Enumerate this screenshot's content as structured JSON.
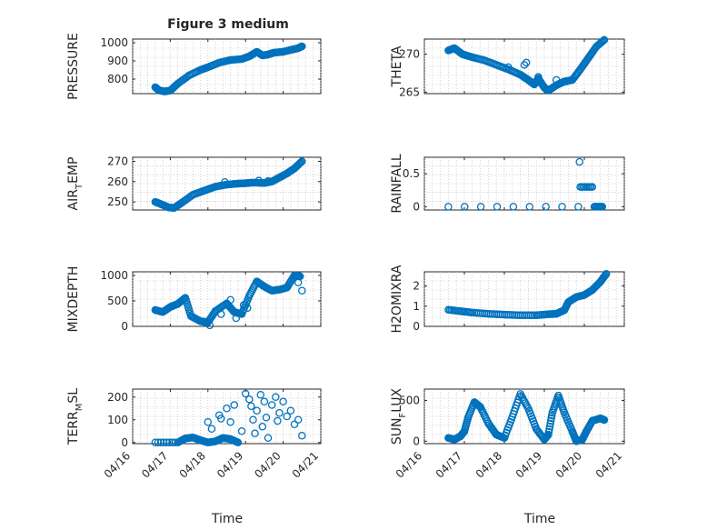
{
  "figure": {
    "title": "Figure 3 medium",
    "xlabel": "Time",
    "marker_color": "#0072bd",
    "axis_color": "#262626"
  },
  "chart_data": [
    {
      "type": "scatter",
      "title": "Figure 3 medium",
      "ylabel": "PRESSURE",
      "xlim": [
        0,
        5
      ],
      "ylim": [
        720,
        1020
      ],
      "yticks": [
        800,
        900,
        1000
      ],
      "xticks": [
        "04/16",
        "04/17",
        "04/18",
        "04/19",
        "04/20",
        "04/21"
      ],
      "show_xticks": false,
      "curve": [
        [
          0.6,
          755
        ],
        [
          0.7,
          738
        ],
        [
          0.85,
          732
        ],
        [
          1.0,
          737
        ],
        [
          1.2,
          775
        ],
        [
          1.5,
          820
        ],
        [
          1.8,
          850
        ],
        [
          2.0,
          865
        ],
        [
          2.3,
          890
        ],
        [
          2.6,
          905
        ],
        [
          2.9,
          910
        ],
        [
          3.1,
          925
        ],
        [
          3.3,
          950
        ],
        [
          3.45,
          930
        ],
        [
          3.6,
          935
        ],
        [
          3.75,
          945
        ],
        [
          4.0,
          950
        ],
        [
          4.2,
          960
        ],
        [
          4.4,
          970
        ],
        [
          4.5,
          980
        ]
      ]
    },
    {
      "type": "scatter",
      "ylabel": "THETA",
      "xlim": [
        0,
        5
      ],
      "ylim": [
        264.8,
        272
      ],
      "yticks": [
        265,
        270
      ],
      "xticks": [
        "04/16",
        "04/17",
        "04/18",
        "04/19",
        "04/20",
        "04/21"
      ],
      "show_xticks": false,
      "curve": [
        [
          0.6,
          270.5
        ],
        [
          0.75,
          270.8
        ],
        [
          0.95,
          270.0
        ],
        [
          1.2,
          269.6
        ],
        [
          1.5,
          269.2
        ],
        [
          1.8,
          268.6
        ],
        [
          2.1,
          268.0
        ],
        [
          2.4,
          267.3
        ],
        [
          2.6,
          266.6
        ],
        [
          2.75,
          266.0
        ],
        [
          2.85,
          266.8
        ],
        [
          3.0,
          265.6
        ],
        [
          3.1,
          265.2
        ],
        [
          3.3,
          265.9
        ],
        [
          3.5,
          266.4
        ],
        [
          3.7,
          266.6
        ],
        [
          3.9,
          268.0
        ],
        [
          4.1,
          269.5
        ],
        [
          4.3,
          271.0
        ],
        [
          4.5,
          271.9
        ]
      ],
      "extra": [
        [
          2.1,
          268.3
        ],
        [
          2.5,
          268.6
        ],
        [
          2.55,
          268.9
        ],
        [
          2.85,
          267.0
        ],
        [
          3.3,
          266.6
        ],
        [
          3.55,
          266.4
        ]
      ]
    },
    {
      "type": "scatter",
      "ylabel": "AIR_TEMP",
      "xlim": [
        0,
        5
      ],
      "ylim": [
        246,
        272
      ],
      "yticks": [
        250,
        260,
        270
      ],
      "xticks": [
        "04/16",
        "04/17",
        "04/18",
        "04/19",
        "04/20",
        "04/21"
      ],
      "show_xticks": false,
      "curve": [
        [
          0.6,
          250.0
        ],
        [
          0.8,
          248.5
        ],
        [
          0.95,
          247.3
        ],
        [
          1.1,
          247.0
        ],
        [
          1.3,
          249.5
        ],
        [
          1.6,
          253.5
        ],
        [
          1.9,
          255.5
        ],
        [
          2.2,
          257.5
        ],
        [
          2.5,
          258.5
        ],
        [
          2.8,
          259.0
        ],
        [
          3.0,
          259.2
        ],
        [
          3.2,
          259.5
        ],
        [
          3.5,
          259.3
        ],
        [
          3.7,
          260.0
        ],
        [
          3.9,
          262.0
        ],
        [
          4.1,
          264.0
        ],
        [
          4.3,
          266.5
        ],
        [
          4.5,
          270.0
        ]
      ],
      "extra": [
        [
          3.35,
          260.5
        ],
        [
          3.6,
          260.3
        ],
        [
          2.45,
          259.8
        ]
      ]
    },
    {
      "type": "scatter",
      "ylabel": "RAINFALL",
      "xlim": [
        0,
        5
      ],
      "ylim": [
        -0.05,
        0.75
      ],
      "yticks": [
        0,
        0.5
      ],
      "xticks": [
        "04/16",
        "04/17",
        "04/18",
        "04/19",
        "04/20",
        "04/21"
      ],
      "show_xticks": false,
      "curve": [
        [
          0.6,
          0
        ],
        [
          3.85,
          0
        ]
      ],
      "curve2": [
        [
          3.9,
          0.3
        ],
        [
          4.2,
          0.3
        ]
      ],
      "curve3": [
        [
          4.25,
          0
        ],
        [
          4.45,
          0
        ]
      ],
      "extra": [
        [
          3.88,
          0.68
        ]
      ]
    },
    {
      "type": "scatter",
      "ylabel": "MIXDEPTH",
      "xlim": [
        0,
        5
      ],
      "ylim": [
        0,
        1070
      ],
      "yticks": [
        0,
        500,
        1000
      ],
      "xticks": [
        "04/16",
        "04/17",
        "04/18",
        "04/19",
        "04/20",
        "04/21"
      ],
      "show_xticks": false,
      "curve": [
        [
          0.6,
          320
        ],
        [
          0.8,
          280
        ],
        [
          1.0,
          380
        ],
        [
          1.2,
          440
        ],
        [
          1.4,
          560
        ],
        [
          1.55,
          200
        ],
        [
          1.8,
          100
        ],
        [
          2.0,
          80
        ],
        [
          2.2,
          300
        ],
        [
          2.5,
          450
        ],
        [
          2.7,
          280
        ],
        [
          2.9,
          240
        ],
        [
          3.1,
          600
        ],
        [
          3.3,
          880
        ],
        [
          3.5,
          780
        ],
        [
          3.7,
          700
        ],
        [
          3.9,
          720
        ],
        [
          4.1,
          760
        ],
        [
          4.3,
          1000
        ],
        [
          4.45,
          980
        ]
      ],
      "extra": [
        [
          2.05,
          20
        ],
        [
          2.35,
          240
        ],
        [
          2.6,
          520
        ],
        [
          2.75,
          160
        ],
        [
          2.95,
          420
        ],
        [
          3.05,
          360
        ],
        [
          4.5,
          700
        ],
        [
          4.4,
          860
        ]
      ]
    },
    {
      "type": "scatter",
      "ylabel": "H2OMIXRA",
      "xlim": [
        0,
        5
      ],
      "ylim": [
        0,
        2.7
      ],
      "yticks": [
        0,
        1,
        2
      ],
      "xticks": [
        "04/16",
        "04/17",
        "04/18",
        "04/19",
        "04/20",
        "04/21"
      ],
      "show_xticks": false,
      "curve": [
        [
          0.6,
          0.82
        ],
        [
          0.9,
          0.75
        ],
        [
          1.2,
          0.68
        ],
        [
          1.6,
          0.62
        ],
        [
          2.0,
          0.58
        ],
        [
          2.4,
          0.55
        ],
        [
          2.8,
          0.55
        ],
        [
          3.1,
          0.6
        ],
        [
          3.3,
          0.62
        ],
        [
          3.5,
          0.8
        ],
        [
          3.6,
          1.2
        ],
        [
          3.8,
          1.45
        ],
        [
          4.0,
          1.55
        ],
        [
          4.2,
          1.8
        ],
        [
          4.4,
          2.2
        ],
        [
          4.55,
          2.6
        ]
      ]
    },
    {
      "type": "scatter",
      "ylabel": "TERR_MSL",
      "xlim": [
        0,
        5
      ],
      "ylim": [
        -5,
        235
      ],
      "yticks": [
        0,
        100,
        200
      ],
      "xticks": [
        "04/16",
        "04/17",
        "04/18",
        "04/19",
        "04/20",
        "04/21"
      ],
      "show_xticks": true,
      "curve": [
        [
          0.6,
          0
        ],
        [
          1.2,
          0
        ],
        [
          1.4,
          18
        ],
        [
          1.6,
          22
        ],
        [
          1.8,
          10
        ],
        [
          2.0,
          0
        ],
        [
          2.2,
          5
        ],
        [
          2.4,
          20
        ],
        [
          2.6,
          15
        ],
        [
          2.8,
          0
        ]
      ],
      "extra": [
        [
          2.0,
          90
        ],
        [
          2.1,
          60
        ],
        [
          2.3,
          120
        ],
        [
          2.5,
          150
        ],
        [
          2.6,
          90
        ],
        [
          2.7,
          165
        ],
        [
          2.9,
          50
        ],
        [
          3.0,
          215
        ],
        [
          3.1,
          190
        ],
        [
          3.15,
          160
        ],
        [
          3.2,
          100
        ],
        [
          3.25,
          40
        ],
        [
          3.3,
          140
        ],
        [
          3.4,
          210
        ],
        [
          3.5,
          180
        ],
        [
          3.55,
          110
        ],
        [
          3.6,
          20
        ],
        [
          3.7,
          165
        ],
        [
          3.8,
          200
        ],
        [
          3.9,
          130
        ],
        [
          4.0,
          180
        ],
        [
          4.1,
          115
        ],
        [
          4.2,
          140
        ],
        [
          4.3,
          80
        ],
        [
          4.4,
          100
        ],
        [
          4.5,
          30
        ],
        [
          2.35,
          105
        ],
        [
          3.45,
          70
        ],
        [
          3.85,
          95
        ]
      ]
    },
    {
      "type": "scatter",
      "ylabel": "SUN_FLUX",
      "xlim": [
        0,
        5
      ],
      "ylim": [
        -30,
        640
      ],
      "yticks": [
        0,
        500
      ],
      "xticks": [
        "04/16",
        "04/17",
        "04/18",
        "04/19",
        "04/20",
        "04/21"
      ],
      "show_xticks": true,
      "curve": [
        [
          0.6,
          40
        ],
        [
          0.75,
          20
        ],
        [
          0.9,
          60
        ],
        [
          1.0,
          120
        ],
        [
          1.1,
          300
        ],
        [
          1.25,
          480
        ],
        [
          1.4,
          420
        ],
        [
          1.6,
          220
        ],
        [
          1.8,
          80
        ],
        [
          2.0,
          40
        ],
        [
          2.2,
          300
        ],
        [
          2.4,
          580
        ],
        [
          2.6,
          400
        ],
        [
          2.8,
          150
        ],
        [
          3.0,
          20
        ],
        [
          3.1,
          80
        ],
        [
          3.2,
          350
        ],
        [
          3.35,
          560
        ],
        [
          3.5,
          350
        ],
        [
          3.7,
          120
        ],
        [
          3.8,
          0
        ],
        [
          3.95,
          20
        ],
        [
          4.05,
          120
        ],
        [
          4.2,
          250
        ],
        [
          4.4,
          280
        ],
        [
          4.5,
          260
        ]
      ]
    }
  ]
}
